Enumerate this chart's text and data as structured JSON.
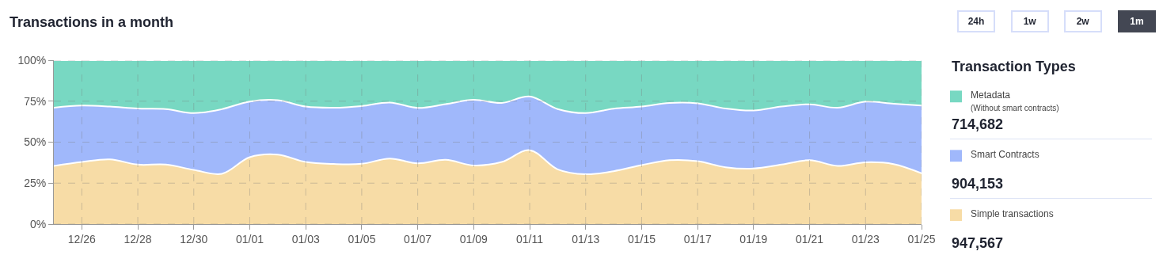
{
  "chart_data": {
    "type": "area",
    "title": "Transactions in a month",
    "stacked": true,
    "legend_title": "Transaction Types",
    "legend": "right",
    "grid": true,
    "line_style": "solid",
    "categories": [
      null,
      "12/26",
      null,
      "12/28",
      null,
      "12/30",
      null,
      "01/01",
      null,
      "01/03",
      null,
      "01/05",
      null,
      "01/07",
      null,
      "01/09",
      null,
      "01/11",
      null,
      "01/13",
      null,
      "01/15",
      null,
      "01/17",
      null,
      "01/19",
      null,
      "01/21",
      null,
      "01/23",
      null,
      "01/25"
    ],
    "ylim": [
      0,
      100
    ],
    "yticks": [
      {
        "value": 0,
        "label": "0%"
      },
      {
        "value": 25,
        "label": "25%"
      },
      {
        "value": 50,
        "label": "50%"
      },
      {
        "value": 75,
        "label": "75%"
      },
      {
        "value": 100,
        "label": "100%"
      }
    ],
    "series": [
      {
        "name": "Simple transactions",
        "color": "#f7dca6",
        "values": [
          35.5,
          37.9,
          39.5,
          36.3,
          36.3,
          33.1,
          30.7,
          40.8,
          42.4,
          37.9,
          36.7,
          36.8,
          40.0,
          37.1,
          39.2,
          35.8,
          37.9,
          45.1,
          33.4,
          30.4,
          32.3,
          36.0,
          39.0,
          38.4,
          34.7,
          33.9,
          36.3,
          39.0,
          35.5,
          37.7,
          36.6,
          31.0
        ]
      },
      {
        "name": "Smart Contracts",
        "color": "#a0b8fb",
        "values": [
          35.5,
          34.4,
          32.2,
          34.2,
          33.9,
          34.6,
          39.4,
          34.0,
          33.2,
          33.8,
          34.3,
          35.2,
          34.2,
          33.8,
          34.0,
          40.0,
          36.0,
          32.8,
          36.8,
          37.3,
          38.1,
          35.7,
          34.9,
          35.3,
          35.8,
          35.4,
          35.4,
          34.1,
          35.5,
          37.0,
          36.8,
          41.3
        ]
      },
      {
        "name": "Metadata\n(Without smart contracts)",
        "color": "#78d8c2",
        "values": [
          29.0,
          27.7,
          28.3,
          29.5,
          29.8,
          32.3,
          29.9,
          25.2,
          24.4,
          28.3,
          29.0,
          28.0,
          25.8,
          29.1,
          26.8,
          24.2,
          26.1,
          22.1,
          29.8,
          32.3,
          29.6,
          28.3,
          26.1,
          26.3,
          29.5,
          30.7,
          28.3,
          26.9,
          29.0,
          25.3,
          26.6,
          27.7
        ]
      }
    ],
    "annotations": [
      "947,567",
      "904,153",
      "714,682",
      "24h",
      "1w",
      "2w",
      "1m"
    ]
  }
}
